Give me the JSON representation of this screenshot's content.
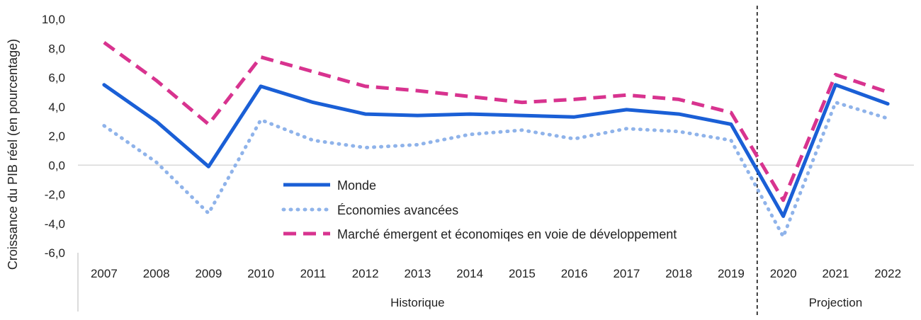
{
  "chart_data": {
    "type": "line",
    "ylabel": "Croissance du PIB réel (en pourcentage)",
    "xlabel": "",
    "ylim": [
      -6,
      10
    ],
    "yticks": [
      "10,0",
      "8,0",
      "6,0",
      "4,0",
      "2,0",
      "0,0",
      "-2,0",
      "-4,0",
      "-6,0"
    ],
    "categories": [
      "2007",
      "2008",
      "2009",
      "2010",
      "2011",
      "2012",
      "2013",
      "2014",
      "2015",
      "2016",
      "2017",
      "2018",
      "2019",
      "2020",
      "2021",
      "2022"
    ],
    "groups": [
      {
        "label": "Historique",
        "from": 0,
        "to": 12
      },
      {
        "label": "Projection",
        "from": 13,
        "to": 15
      }
    ],
    "legend_position": "center",
    "series": [
      {
        "name": "Monde",
        "color": "#1a5fd6",
        "style": "solid",
        "values": [
          5.5,
          3.0,
          -0.1,
          5.4,
          4.3,
          3.5,
          3.4,
          3.5,
          3.4,
          3.3,
          3.8,
          3.5,
          2.8,
          -3.5,
          5.5,
          4.2
        ]
      },
      {
        "name": "Économies avancées",
        "color": "#8fb3ea",
        "style": "dotted",
        "values": [
          2.7,
          0.2,
          -3.3,
          3.1,
          1.7,
          1.2,
          1.4,
          2.1,
          2.4,
          1.8,
          2.5,
          2.3,
          1.7,
          -4.9,
          4.3,
          3.2
        ]
      },
      {
        "name": "Marché émergent et économiqes en voie de développement",
        "color": "#d8338f",
        "style": "dashed",
        "values": [
          8.4,
          5.8,
          2.8,
          7.4,
          6.4,
          5.4,
          5.1,
          4.7,
          4.3,
          4.5,
          4.8,
          4.5,
          3.6,
          -2.4,
          6.2,
          5.0
        ]
      }
    ]
  }
}
